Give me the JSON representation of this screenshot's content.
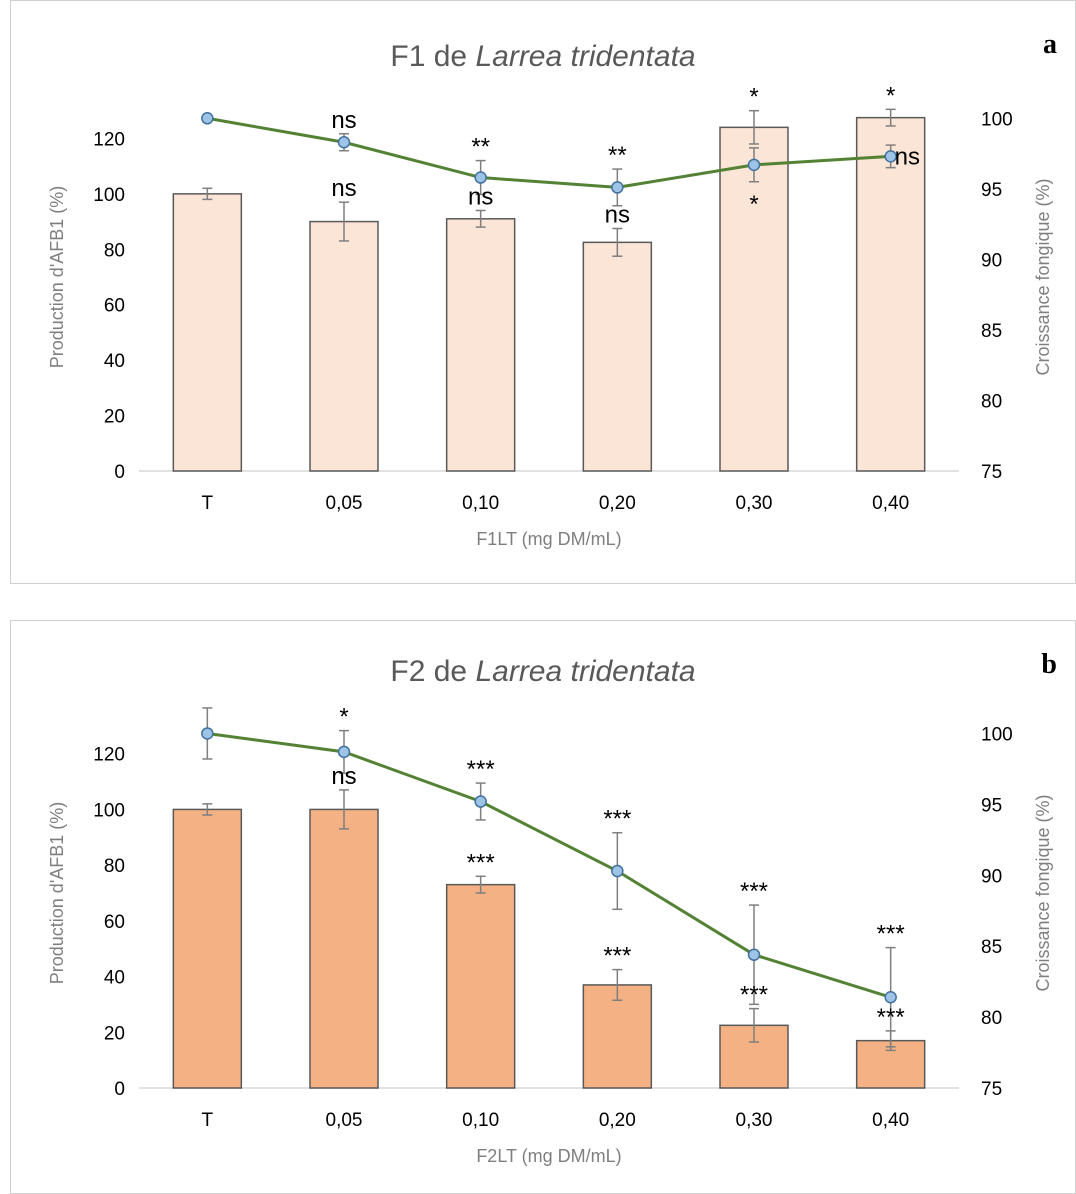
{
  "chart_data": [
    {
      "type": "bar",
      "panel_letter": "a",
      "title_prefix": "F1 de ",
      "title_species": "Larrea tridentata",
      "xlabel": "F1LT (mg DM/mL)",
      "ylabel": "Production d'AFB1 (%)",
      "y2label": "Croissance fongique (%)",
      "categories": [
        "T",
        "0,05",
        "0,10",
        "0,20",
        "0,30",
        "0,40"
      ],
      "ylim": [
        0,
        140
      ],
      "yticks": [
        0,
        20,
        40,
        60,
        80,
        100,
        120
      ],
      "y2lim": [
        75,
        102.5
      ],
      "y2ticks": [
        75,
        80,
        85,
        90,
        95,
        100
      ],
      "bar_color": "#fbe5d6",
      "line_color": "#548235",
      "marker_color": "#9dc3e6",
      "series": [
        {
          "type": "bar",
          "values": [
            100,
            90,
            91,
            82.5,
            124,
            127.5
          ],
          "errors": [
            2,
            7,
            3,
            5,
            6,
            3
          ],
          "annotations": [
            "",
            "ns",
            "ns",
            "ns",
            "*",
            "*"
          ]
        },
        {
          "type": "line",
          "values": [
            100,
            98.3,
            95.8,
            95.1,
            96.7,
            97.3
          ],
          "errors": [
            0,
            0.6,
            1.2,
            1.3,
            1.2,
            0.8
          ],
          "annotations": [
            "",
            "ns",
            "**",
            "**",
            "*",
            "ns"
          ]
        }
      ]
    },
    {
      "type": "bar",
      "panel_letter": "b",
      "title_prefix": "F2 de ",
      "title_species": "Larrea tridentata",
      "xlabel": "F2LT (mg DM/mL)",
      "ylabel": "Production d'AFB1 (%)",
      "y2label": "Croissance fongique (%)",
      "categories": [
        "T",
        "0,05",
        "0,10",
        "0,20",
        "0,30",
        "0,40"
      ],
      "ylim": [
        0,
        140
      ],
      "yticks": [
        0,
        20,
        40,
        60,
        80,
        100,
        120
      ],
      "y2lim": [
        75,
        102.5
      ],
      "y2ticks": [
        75,
        80,
        85,
        90,
        95,
        100
      ],
      "bar_color": "#f4b183",
      "line_color": "#548235",
      "marker_color": "#9dc3e6",
      "series": [
        {
          "type": "bar",
          "values": [
            100,
            100,
            73,
            37,
            22.5,
            17
          ],
          "errors": [
            2,
            7,
            3,
            5.5,
            6,
            3.5
          ],
          "annotations": [
            "",
            "ns",
            "***",
            "***",
            "***",
            "***"
          ]
        },
        {
          "type": "line",
          "values": [
            100,
            98.7,
            95.2,
            90.3,
            84.4,
            81.4
          ],
          "errors": [
            1.8,
            1.5,
            1.3,
            2.7,
            3.5,
            3.5
          ],
          "annotations": [
            "",
            "*",
            "***",
            "***",
            "***",
            "***"
          ]
        }
      ]
    }
  ]
}
